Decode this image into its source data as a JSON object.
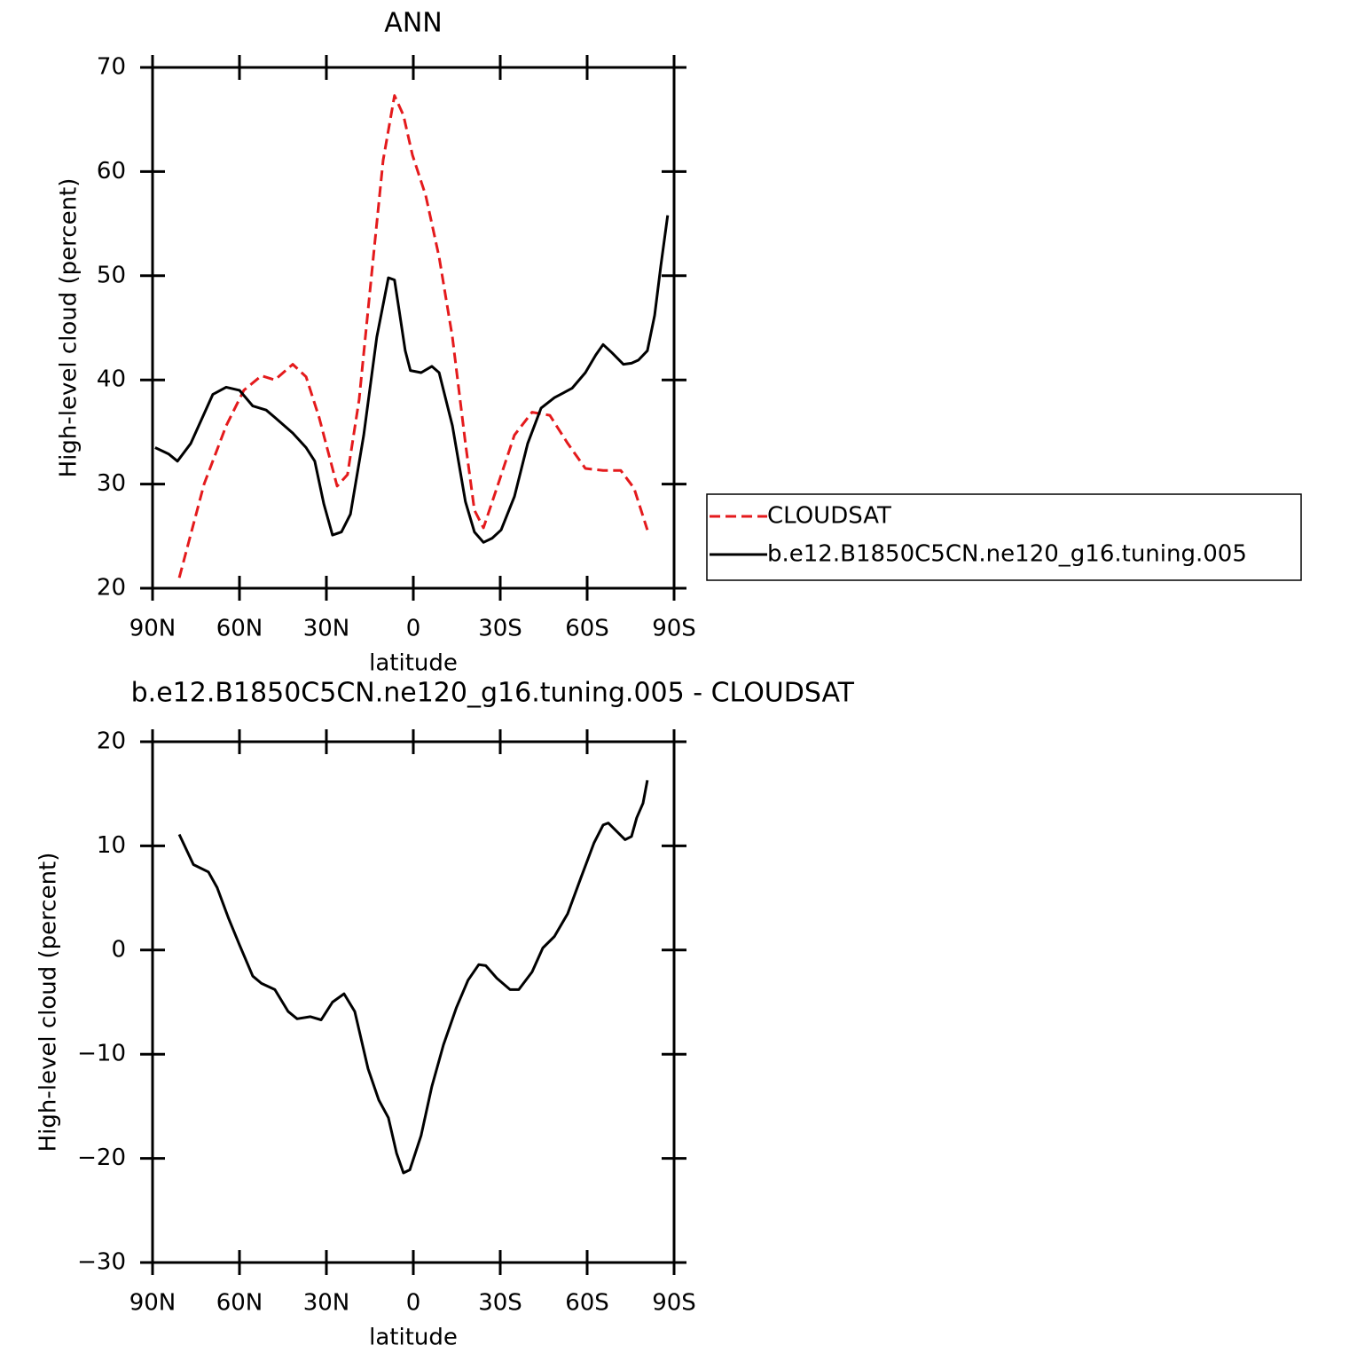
{
  "chart_data": [
    {
      "type": "line",
      "title": "ANN",
      "y_label": "High-level cloud (percent)",
      "x_label": "latitude",
      "xlim": [
        90,
        -90
      ],
      "xticks": [
        {
          "value": 90,
          "label": "90N"
        },
        {
          "value": 60,
          "label": "60N"
        },
        {
          "value": 30,
          "label": "30N"
        },
        0,
        {
          "value": -30,
          "label": "30S"
        },
        {
          "value": -60,
          "label": "60S"
        },
        {
          "value": -90,
          "label": "90S"
        }
      ],
      "ylim": [
        20,
        70
      ],
      "yticks": [
        20,
        30,
        40,
        50,
        60,
        70
      ],
      "series": [
        {
          "name": "CLOUDSAT",
          "color": "#e41a1c",
          "line_style": "dashed",
          "x": [
            80.8,
            72.2,
            64.6,
            58.5,
            52.4,
            47.8,
            41.6,
            37.0,
            32.5,
            26.3,
            22.7,
            18.7,
            14.1,
            10.4,
            6.5,
            3.4,
            0.3,
            -4.3,
            -8.9,
            -13.5,
            -18.0,
            -21.1,
            -24.2,
            -28.8,
            -34.9,
            -41.0,
            -47.1,
            -53.3,
            -59.4,
            -65.5,
            -71.6,
            -76.2,
            -80.8
          ],
          "values": [
            21.0,
            30.0,
            35.6,
            39.0,
            40.4,
            40.0,
            41.5,
            40.3,
            36.4,
            29.8,
            30.9,
            38.1,
            50.9,
            61.1,
            67.3,
            65.4,
            61.6,
            57.7,
            51.8,
            44.1,
            33.9,
            27.5,
            25.8,
            29.6,
            34.7,
            36.9,
            36.6,
            33.9,
            31.5,
            31.3,
            31.3,
            29.6,
            25.6
          ]
        },
        {
          "name": "b.e12.B1850C5CN.ne120_g16.tuning.005",
          "color": "#000000",
          "line_style": "solid",
          "x": [
            89.1,
            84.5,
            81.4,
            76.8,
            69.2,
            64.6,
            60.0,
            55.4,
            50.8,
            47.8,
            41.6,
            37.0,
            34.0,
            30.9,
            27.9,
            24.8,
            21.7,
            17.1,
            12.6,
            8.6,
            6.5,
            4.9,
            2.8,
            1.0,
            -2.7,
            -6.4,
            -8.9,
            -13.5,
            -18.0,
            -21.1,
            -24.2,
            -27.2,
            -30.3,
            -34.9,
            -39.5,
            -44.1,
            -48.7,
            -54.8,
            -59.4,
            -63.0,
            -65.5,
            -68.6,
            -72.5,
            -75.3,
            -77.7,
            -80.8,
            -83.3,
            -85.4,
            -87.8
          ],
          "values": [
            33.5,
            32.9,
            32.2,
            33.9,
            38.6,
            39.3,
            39.0,
            37.5,
            37.1,
            36.4,
            34.9,
            33.5,
            32.2,
            28.1,
            25.1,
            25.4,
            27.1,
            34.7,
            44.1,
            49.8,
            49.6,
            46.7,
            42.8,
            40.9,
            40.7,
            41.3,
            40.7,
            35.6,
            28.3,
            25.4,
            24.4,
            24.8,
            25.6,
            28.8,
            33.9,
            37.3,
            38.3,
            39.2,
            40.7,
            42.4,
            43.4,
            42.6,
            41.5,
            41.6,
            41.9,
            42.8,
            46.2,
            50.9,
            55.8
          ]
        }
      ]
    },
    {
      "type": "line",
      "title": "b.e12.B1850C5CN.ne120_g16.tuning.005 - CLOUDSAT",
      "y_label": "High-level cloud (percent)",
      "x_label": "latitude",
      "xlim": [
        90,
        -90
      ],
      "xticks": [
        {
          "value": 90,
          "label": "90N"
        },
        {
          "value": 60,
          "label": "60N"
        },
        {
          "value": 30,
          "label": "30N"
        },
        0,
        {
          "value": -30,
          "label": "30S"
        },
        {
          "value": -60,
          "label": "60S"
        },
        {
          "value": -90,
          "label": "90S"
        }
      ],
      "ylim": [
        -30,
        20
      ],
      "yticks": [
        {
          "value": -30,
          "label": "−30"
        },
        {
          "value": -20,
          "label": "−20"
        },
        {
          "value": -10,
          "label": "−10"
        },
        0,
        10,
        20
      ],
      "series": [
        {
          "color": "#000000",
          "line_style": "solid",
          "x": [
            80.8,
            75.9,
            70.7,
            67.7,
            63.7,
            60.0,
            55.4,
            52.4,
            47.8,
            43.2,
            40.1,
            35.5,
            31.8,
            27.9,
            23.9,
            20.2,
            15.6,
            11.9,
            8.6,
            5.8,
            3.4,
            1.2,
            -2.7,
            -6.4,
            -10.4,
            -14.9,
            -18.9,
            -22.6,
            -25.0,
            -28.8,
            -33.4,
            -36.4,
            -41.0,
            -44.7,
            -48.7,
            -53.3,
            -57.8,
            -62.4,
            -65.5,
            -67.3,
            -73.1,
            -75.3,
            -77.1,
            -79.3,
            -80.8
          ],
          "values": [
            11.1,
            8.2,
            7.5,
            6.0,
            3.0,
            0.5,
            -2.5,
            -3.2,
            -3.8,
            -5.9,
            -6.6,
            -6.4,
            -6.7,
            -5.0,
            -4.2,
            -5.9,
            -11.4,
            -14.4,
            -16.1,
            -19.5,
            -21.4,
            -21.1,
            -17.8,
            -13.1,
            -9.1,
            -5.5,
            -2.9,
            -1.4,
            -1.5,
            -2.7,
            -3.8,
            -3.8,
            -2.1,
            0.2,
            1.3,
            3.5,
            6.9,
            10.3,
            12.0,
            12.2,
            10.6,
            10.9,
            12.7,
            14.1,
            16.3
          ]
        }
      ]
    }
  ]
}
